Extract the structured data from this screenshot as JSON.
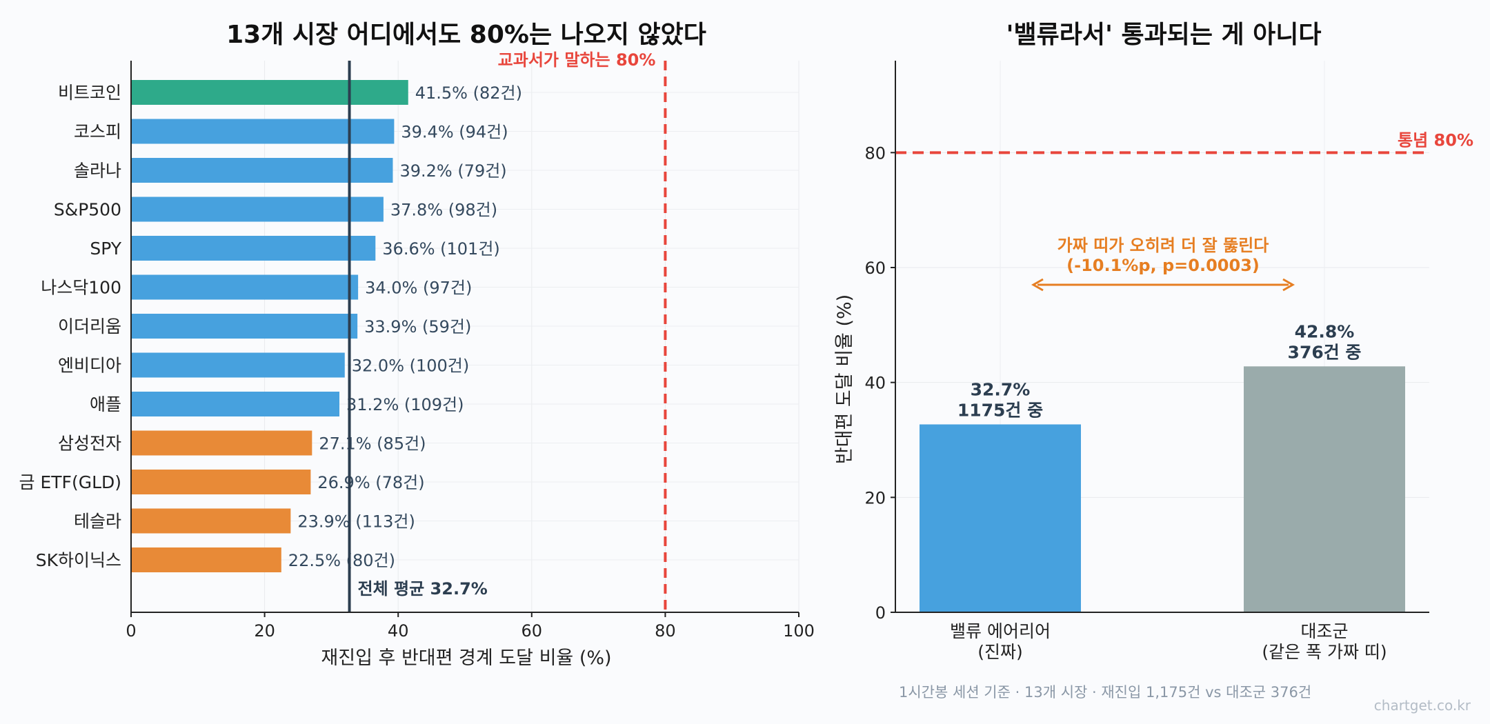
{
  "chart_data": [
    {
      "type": "bar",
      "orientation": "horizontal",
      "title": "13개 시장 어디에서도 80%는 나오지 않았다",
      "xlabel": "재진입 후 반대편 경계 도달 비율 (%)",
      "ylabel": "",
      "xlim": [
        0,
        100
      ],
      "xticks": [
        0,
        20,
        40,
        60,
        80,
        100
      ],
      "grid": true,
      "bars": [
        {
          "label": "비트코인",
          "value": 41.5,
          "count": "82건",
          "color": "#2eaa8a"
        },
        {
          "label": "코스피",
          "value": 39.4,
          "count": "94건",
          "color": "#47a1de"
        },
        {
          "label": "솔라나",
          "value": 39.2,
          "count": "79건",
          "color": "#47a1de"
        },
        {
          "label": "S&P500",
          "value": 37.8,
          "count": "98건",
          "color": "#47a1de"
        },
        {
          "label": "SPY",
          "value": 36.6,
          "count": "101건",
          "color": "#47a1de"
        },
        {
          "label": "나스닥100",
          "value": 34.0,
          "count": "97건",
          "color": "#47a1de"
        },
        {
          "label": "이더리움",
          "value": 33.9,
          "count": "59건",
          "color": "#47a1de"
        },
        {
          "label": "엔비디아",
          "value": 32.0,
          "count": "100건",
          "color": "#47a1de"
        },
        {
          "label": "애플",
          "value": 31.2,
          "count": "109건",
          "color": "#47a1de"
        },
        {
          "label": "삼성전자",
          "value": 27.1,
          "count": "85건",
          "color": "#e88a37"
        },
        {
          "label": "금 ETF(GLD)",
          "value": 26.9,
          "count": "78건",
          "color": "#e88a37"
        },
        {
          "label": "테슬라",
          "value": 23.9,
          "count": "113건",
          "color": "#e88a37"
        },
        {
          "label": "SK하이닉스",
          "value": 22.5,
          "count": "80건",
          "color": "#e88a37"
        }
      ],
      "reference_lines": [
        {
          "value": 32.7,
          "label": "전체 평균 32.7%",
          "color": "#2c3e50",
          "style": "solid"
        },
        {
          "value": 80,
          "label": "교과서가 말하는 80%",
          "color": "#e8463c",
          "style": "dashed"
        }
      ]
    },
    {
      "type": "bar",
      "title": "'밸류라서' 통과되는 게 아니다",
      "xlabel": "",
      "ylabel": "반대편 도달 비율 (%)",
      "ylim": [
        0,
        96
      ],
      "yticks": [
        0,
        20,
        40,
        60,
        80
      ],
      "grid": true,
      "categories": [
        {
          "line1": "밸류 에어리어",
          "line2": "(진짜)"
        },
        {
          "line1": "대조군",
          "line2": "(같은 폭 가짜 띠)"
        }
      ],
      "values": [
        32.7,
        42.8
      ],
      "value_labels": [
        {
          "pct": "32.7%",
          "count": "1175건 중"
        },
        {
          "pct": "42.8%",
          "count": "376건 중"
        }
      ],
      "colors": [
        "#47a1de",
        "#9aabab"
      ],
      "reference_line": {
        "value": 80,
        "label": "통념 80%",
        "color": "#e8463c",
        "style": "dashed"
      },
      "annotation": {
        "line1": "가짜 띠가 오히려 더 잘 뚫린다",
        "line2": "(-10.1%p, p=0.0003)",
        "color": "#e67e22"
      }
    }
  ],
  "footer": "1시간봉 세션 기준 · 13개 시장 · 재진입 1,175건 vs 대조군 376건",
  "watermark": "chartget.co.kr"
}
